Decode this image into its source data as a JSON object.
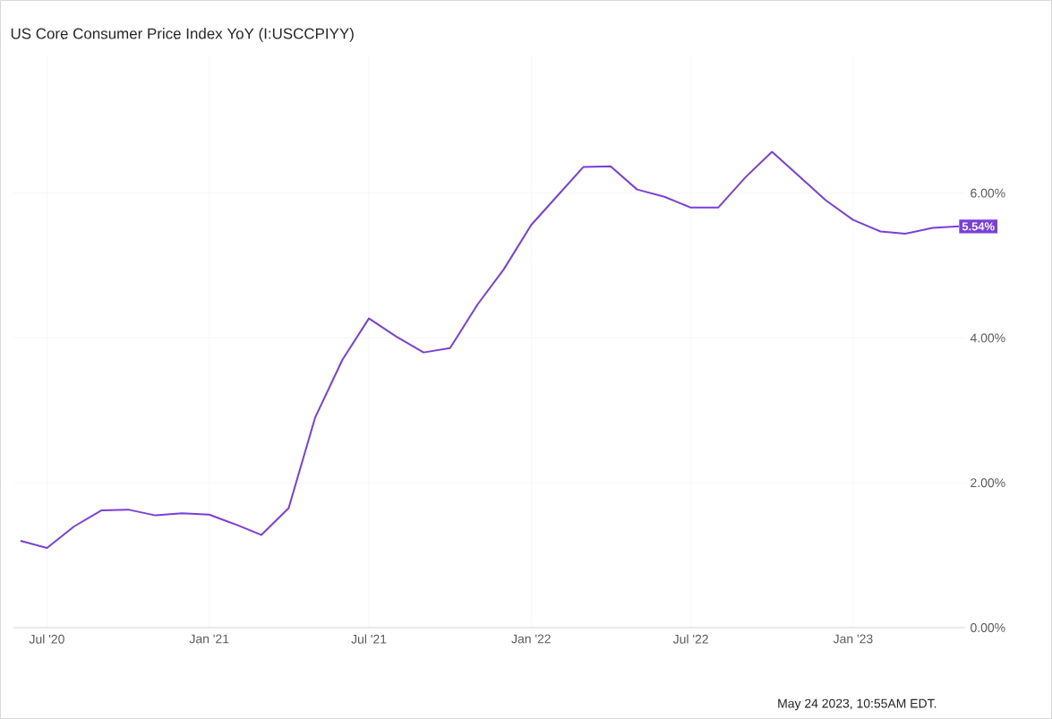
{
  "chart_data": {
    "type": "line",
    "title": "US Core Consumer Price Index YoY (I:USCCPIYY)",
    "x": [
      "2020-06",
      "2020-07",
      "2020-08",
      "2020-09",
      "2020-10",
      "2020-11",
      "2020-12",
      "2021-01",
      "2021-02",
      "2021-03",
      "2021-04",
      "2021-05",
      "2021-06",
      "2021-07",
      "2021-08",
      "2021-09",
      "2021-10",
      "2021-11",
      "2021-12",
      "2022-01",
      "2022-02",
      "2022-03",
      "2022-04",
      "2022-05",
      "2022-06",
      "2022-07",
      "2022-08",
      "2022-09",
      "2022-10",
      "2022-11",
      "2022-12",
      "2023-01",
      "2023-02",
      "2023-03",
      "2023-04",
      "2023-05"
    ],
    "values": [
      1.2,
      1.1,
      1.4,
      1.62,
      1.63,
      1.55,
      1.58,
      1.56,
      1.42,
      1.28,
      1.65,
      2.9,
      3.7,
      4.27,
      4.02,
      3.8,
      3.86,
      4.46,
      4.95,
      5.56,
      5.98,
      6.36,
      6.37,
      6.05,
      5.95,
      5.8,
      5.8,
      6.22,
      6.57,
      6.23,
      5.9,
      5.63,
      5.47,
      5.44,
      5.52,
      5.54
    ],
    "color": "#7b3fd9",
    "xlim": [
      "2020-05-24",
      "2023-05-08"
    ],
    "ylim": [
      0,
      7.9
    ],
    "xticks": [
      {
        "value": "2020-07",
        "label": "Jul '20"
      },
      {
        "value": "2021-01",
        "label": "Jan '21"
      },
      {
        "value": "2021-07",
        "label": "Jul '21"
      },
      {
        "value": "2022-01",
        "label": "Jan '22"
      },
      {
        "value": "2022-07",
        "label": "Jul '22"
      },
      {
        "value": "2023-01",
        "label": "Jan '23"
      }
    ],
    "yticks": [
      {
        "value": 0,
        "label": "0.00%"
      },
      {
        "value": 2,
        "label": "2.00%"
      },
      {
        "value": 4,
        "label": "4.00%"
      },
      {
        "value": 6,
        "label": "6.00%"
      }
    ],
    "grid": true,
    "annotations": [
      {
        "text": "5.54%",
        "x": "2023-05",
        "y": 5.54
      },
      "May 24 2023, 10:55AM EDT."
    ]
  }
}
